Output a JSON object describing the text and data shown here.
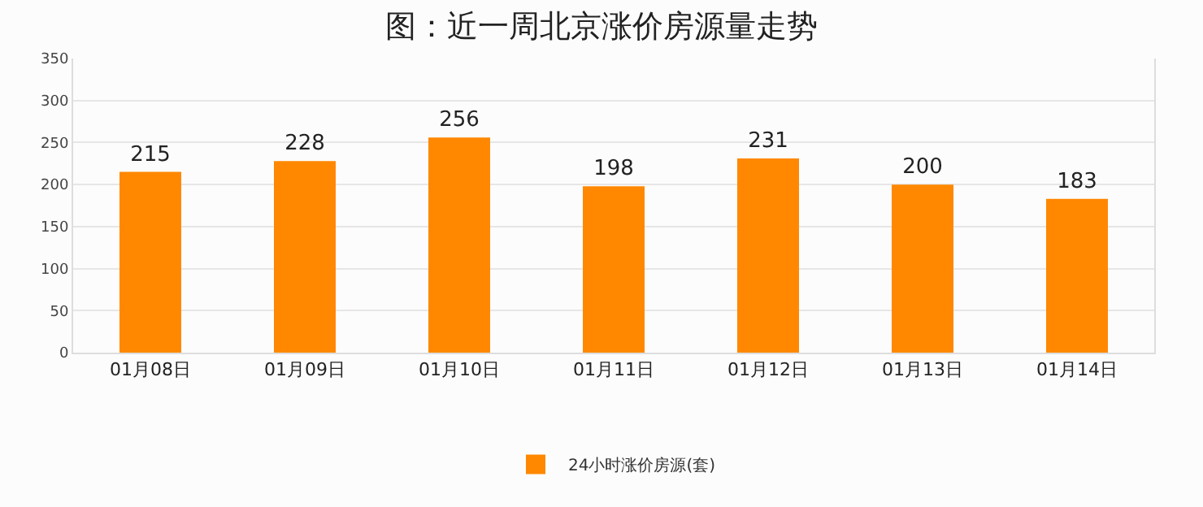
{
  "chart_data": {
    "type": "bar",
    "title": "图：近一周北京涨价房源量走势",
    "categories": [
      "01月08日",
      "01月09日",
      "01月10日",
      "01月11日",
      "01月12日",
      "01月13日",
      "01月14日"
    ],
    "series": [
      {
        "name": "24小时涨价房源(套)",
        "color": "#ff8800",
        "values": [
          215,
          228,
          256,
          198,
          231,
          200,
          183
        ]
      }
    ],
    "ylim": [
      0,
      350
    ],
    "yticks": [
      0,
      50,
      100,
      150,
      200,
      250,
      300,
      350
    ],
    "grid": true,
    "legend": "bottom",
    "data_labels": true
  }
}
